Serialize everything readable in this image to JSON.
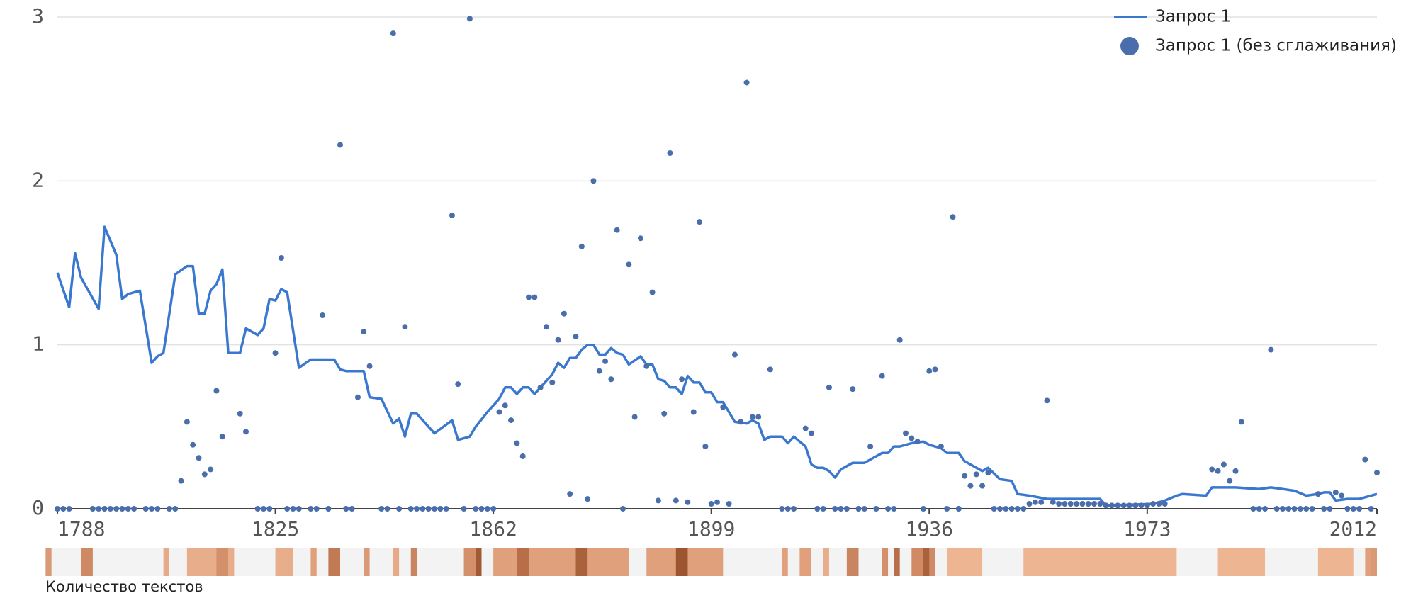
{
  "chart_data": {
    "type": "line",
    "xlim": [
      1788,
      2012
    ],
    "xticks": [
      1788,
      1825,
      1862,
      1899,
      1936,
      1973,
      2012
    ],
    "ylim": [
      0,
      3
    ],
    "yticks": [
      0,
      1,
      2,
      3
    ],
    "grid": true,
    "legend": "top-right",
    "series": [
      {
        "name": "Запрос 1",
        "type": "line",
        "color": "#3a78cf",
        "x": [
          1788,
          1790,
          1791,
          1792,
          1795,
          1796,
          1798,
          1799,
          1800,
          1802,
          1804,
          1805,
          1806,
          1808,
          1810,
          1811,
          1812,
          1813,
          1814,
          1815,
          1816,
          1817,
          1819,
          1820,
          1822,
          1823,
          1824,
          1825,
          1826,
          1827,
          1829,
          1831,
          1835,
          1836,
          1837,
          1840,
          1841,
          1843,
          1845,
          1846,
          1847,
          1848,
          1849,
          1850,
          1852,
          1855,
          1856,
          1858,
          1859,
          1861,
          1863,
          1864,
          1865,
          1866,
          1867,
          1868,
          1869,
          1871,
          1872,
          1873,
          1874,
          1875,
          1876,
          1877,
          1878,
          1879,
          1880,
          1881,
          1882,
          1883,
          1884,
          1885,
          1887,
          1888,
          1889,
          1890,
          1891,
          1892,
          1893,
          1894,
          1895,
          1896,
          1897,
          1898,
          1899,
          1900,
          1901,
          1903,
          1905,
          1906,
          1907,
          1908,
          1909,
          1911,
          1912,
          1913,
          1914,
          1915,
          1916,
          1917,
          1918,
          1919,
          1920,
          1921,
          1923,
          1925,
          1927,
          1928,
          1929,
          1930,
          1931,
          1933,
          1935,
          1936,
          1938,
          1939,
          1941,
          1942,
          1944,
          1945,
          1946,
          1948,
          1950,
          1951,
          1953,
          1956,
          1958,
          1965,
          1966,
          1974,
          1976,
          1978,
          1979,
          1983,
          1984,
          1988,
          1992,
          1994,
          1996,
          1998,
          2000,
          2002,
          2003,
          2004,
          2005,
          2007,
          2009,
          2012
        ],
        "values": [
          1.44,
          1.23,
          1.56,
          1.41,
          1.22,
          1.72,
          1.55,
          1.28,
          1.31,
          1.33,
          0.89,
          0.93,
          0.95,
          1.43,
          1.48,
          1.48,
          1.19,
          1.19,
          1.33,
          1.37,
          1.46,
          0.95,
          0.95,
          1.1,
          1.06,
          1.1,
          1.28,
          1.27,
          1.34,
          1.32,
          0.86,
          0.91,
          0.91,
          0.85,
          0.84,
          0.84,
          0.68,
          0.67,
          0.52,
          0.55,
          0.44,
          0.58,
          0.58,
          0.54,
          0.46,
          0.54,
          0.42,
          0.44,
          0.5,
          0.59,
          0.67,
          0.74,
          0.74,
          0.7,
          0.74,
          0.74,
          0.7,
          0.78,
          0.82,
          0.89,
          0.86,
          0.92,
          0.92,
          0.97,
          1.0,
          1.0,
          0.94,
          0.94,
          0.98,
          0.95,
          0.94,
          0.88,
          0.93,
          0.88,
          0.88,
          0.79,
          0.78,
          0.74,
          0.74,
          0.7,
          0.81,
          0.77,
          0.77,
          0.71,
          0.71,
          0.65,
          0.65,
          0.53,
          0.52,
          0.54,
          0.52,
          0.42,
          0.44,
          0.44,
          0.4,
          0.44,
          0.41,
          0.38,
          0.27,
          0.25,
          0.25,
          0.23,
          0.19,
          0.24,
          0.28,
          0.28,
          0.32,
          0.34,
          0.34,
          0.38,
          0.38,
          0.4,
          0.41,
          0.39,
          0.37,
          0.34,
          0.34,
          0.29,
          0.25,
          0.23,
          0.25,
          0.18,
          0.17,
          0.09,
          0.08,
          0.06,
          0.06,
          0.06,
          0.02,
          0.03,
          0.05,
          0.08,
          0.09,
          0.08,
          0.13,
          0.13,
          0.12,
          0.13,
          0.12,
          0.11,
          0.08,
          0.09,
          0.1,
          0.1,
          0.05,
          0.06,
          0.06,
          0.09
        ]
      },
      {
        "name": "Запрос 1 (без сглаживания)",
        "type": "scatter",
        "color": "#4a6eab",
        "x": [
          1788,
          1789,
          1790,
          1794,
          1795,
          1796,
          1797,
          1798,
          1799,
          1800,
          1801,
          1803,
          1804,
          1805,
          1807,
          1808,
          1809,
          1810,
          1811,
          1812,
          1813,
          1814,
          1815,
          1816,
          1819,
          1820,
          1822,
          1823,
          1824,
          1825,
          1826,
          1827,
          1828,
          1829,
          1831,
          1832,
          1833,
          1834,
          1836,
          1837,
          1838,
          1839,
          1840,
          1841,
          1843,
          1844,
          1845,
          1846,
          1847,
          1848,
          1849,
          1850,
          1851,
          1852,
          1853,
          1854,
          1855,
          1856,
          1857,
          1858,
          1859,
          1860,
          1861,
          1862,
          1863,
          1864,
          1865,
          1866,
          1867,
          1868,
          1869,
          1870,
          1871,
          1872,
          1873,
          1874,
          1875,
          1876,
          1877,
          1878,
          1879,
          1880,
          1881,
          1882,
          1883,
          1884,
          1885,
          1886,
          1887,
          1888,
          1889,
          1890,
          1891,
          1892,
          1893,
          1894,
          1895,
          1896,
          1897,
          1898,
          1899,
          1900,
          1901,
          1902,
          1903,
          1904,
          1905,
          1906,
          1907,
          1909,
          1911,
          1912,
          1913,
          1915,
          1916,
          1917,
          1918,
          1919,
          1920,
          1921,
          1922,
          1923,
          1924,
          1925,
          1926,
          1927,
          1928,
          1929,
          1930,
          1931,
          1932,
          1933,
          1934,
          1935,
          1936,
          1937,
          1938,
          1939,
          1940,
          1941,
          1942,
          1943,
          1944,
          1945,
          1946,
          1947,
          1948,
          1949,
          1950,
          1951,
          1952,
          1953,
          1954,
          1955,
          1956,
          1957,
          1958,
          1959,
          1960,
          1961,
          1962,
          1963,
          1964,
          1965,
          1966,
          1967,
          1968,
          1969,
          1970,
          1971,
          1972,
          1973,
          1974,
          1975,
          1976,
          1984,
          1985,
          1986,
          1987,
          1988,
          1989,
          1991,
          1992,
          1993,
          1994,
          1995,
          1996,
          1997,
          1998,
          1999,
          2000,
          2001,
          2002,
          2003,
          2004,
          2005,
          2006,
          2007,
          2008,
          2009,
          2010,
          2011,
          2012
        ],
        "values": [
          0,
          0,
          0,
          0,
          0,
          0,
          0,
          0,
          0,
          0,
          0,
          0,
          0,
          0,
          0,
          0,
          0.17,
          0.53,
          0.39,
          0.31,
          0.21,
          0.24,
          0.72,
          0.44,
          0.58,
          0.47,
          0,
          0,
          0,
          0.95,
          1.53,
          0,
          0,
          0,
          0,
          0,
          1.18,
          0,
          2.22,
          0,
          0,
          0.68,
          1.08,
          0.87,
          0,
          0,
          2.9,
          0,
          1.11,
          0,
          0,
          0,
          0,
          0,
          0,
          0,
          1.79,
          0.76,
          0,
          2.99,
          0,
          0,
          0,
          0,
          0.59,
          0.63,
          0.54,
          0.4,
          0.32,
          1.29,
          1.29,
          0.74,
          1.11,
          0.77,
          1.03,
          1.19,
          0.09,
          1.05,
          1.6,
          0.06,
          2.0,
          0.84,
          0.9,
          0.79,
          1.7,
          0,
          1.49,
          0.56,
          1.65,
          0.87,
          1.32,
          0.05,
          0.58,
          2.17,
          0.05,
          0.79,
          0.04,
          0.59,
          1.75,
          0.38,
          0.03,
          0.04,
          0.62,
          0.03,
          0.94,
          0.53,
          2.6,
          0.56,
          0.56,
          0.85,
          0,
          0,
          0,
          0.49,
          0.46,
          0,
          0,
          0.74,
          0,
          0,
          0,
          0.73,
          0,
          0,
          0.38,
          0,
          0.81,
          0,
          0,
          1.03,
          0.46,
          0.43,
          0.41,
          0,
          0.84,
          0.85,
          0.38,
          0,
          1.78,
          0,
          0.2,
          0.14,
          0.21,
          0.14,
          0.22,
          0,
          0,
          0,
          0,
          0,
          0,
          0.03,
          0.04,
          0.04,
          0.66,
          0.04,
          0.03,
          0.03,
          0.03,
          0.03,
          0.03,
          0.03,
          0.03,
          0.03,
          0.02,
          0.02,
          0.02,
          0.02,
          0.02,
          0.02,
          0.02,
          0.02,
          0.03,
          0.03,
          0.03,
          0.24,
          0.23,
          0.27,
          0.17,
          0.23,
          0.53,
          0,
          0,
          0,
          0.97,
          0,
          0,
          0,
          0,
          0,
          0,
          0,
          0.09,
          0,
          0,
          0.1,
          0.08,
          0,
          0,
          0,
          0.3,
          0,
          0.22
        ]
      }
    ],
    "text_count_strip": {
      "label": "Количество текстов",
      "background": "#f3f3f3",
      "segments": [
        {
          "from": 1786,
          "to": 1787,
          "color": "#d99a75"
        },
        {
          "from": 1792,
          "to": 1794,
          "color": "#cf8a63"
        },
        {
          "from": 1806,
          "to": 1807,
          "color": "#e6aa88"
        },
        {
          "from": 1810,
          "to": 1818,
          "color": "#e8ae8c"
        },
        {
          "from": 1815,
          "to": 1817,
          "color": "#d4906b"
        },
        {
          "from": 1825,
          "to": 1828,
          "color": "#e8ae8c"
        },
        {
          "from": 1831,
          "to": 1832,
          "color": "#e0a07c"
        },
        {
          "from": 1834,
          "to": 1836,
          "color": "#c27a54"
        },
        {
          "from": 1840,
          "to": 1841,
          "color": "#d99a75"
        },
        {
          "from": 1845,
          "to": 1846,
          "color": "#e6aa88"
        },
        {
          "from": 1848,
          "to": 1849,
          "color": "#c98460"
        },
        {
          "from": 1857,
          "to": 1859,
          "color": "#d4906b"
        },
        {
          "from": 1859,
          "to": 1860,
          "color": "#a25a36"
        },
        {
          "from": 1862,
          "to": 1885,
          "color": "#e0a07c"
        },
        {
          "from": 1866,
          "to": 1868,
          "color": "#b86e48"
        },
        {
          "from": 1876,
          "to": 1878,
          "color": "#a9623c"
        },
        {
          "from": 1888,
          "to": 1901,
          "color": "#e0a07c"
        },
        {
          "from": 1893,
          "to": 1895,
          "color": "#9b5530"
        },
        {
          "from": 1911,
          "to": 1912,
          "color": "#e0a07c"
        },
        {
          "from": 1914,
          "to": 1916,
          "color": "#e0a07c"
        },
        {
          "from": 1918,
          "to": 1919,
          "color": "#e8ae8c"
        },
        {
          "from": 1922,
          "to": 1924,
          "color": "#c98460"
        },
        {
          "from": 1928,
          "to": 1929,
          "color": "#d4906b"
        },
        {
          "from": 1930,
          "to": 1931,
          "color": "#b86e48"
        },
        {
          "from": 1933,
          "to": 1937,
          "color": "#d08b66"
        },
        {
          "from": 1935,
          "to": 1936,
          "color": "#a9623c"
        },
        {
          "from": 1939,
          "to": 1945,
          "color": "#eeb592"
        },
        {
          "from": 1952,
          "to": 1978,
          "color": "#eeb592"
        },
        {
          "from": 1985,
          "to": 1993,
          "color": "#eeb592"
        },
        {
          "from": 2002,
          "to": 2008,
          "color": "#eeb592"
        },
        {
          "from": 2010,
          "to": 2011,
          "color": "#e0a07c"
        },
        {
          "from": 2011,
          "to": 2012,
          "color": "#d99a75"
        }
      ]
    }
  }
}
